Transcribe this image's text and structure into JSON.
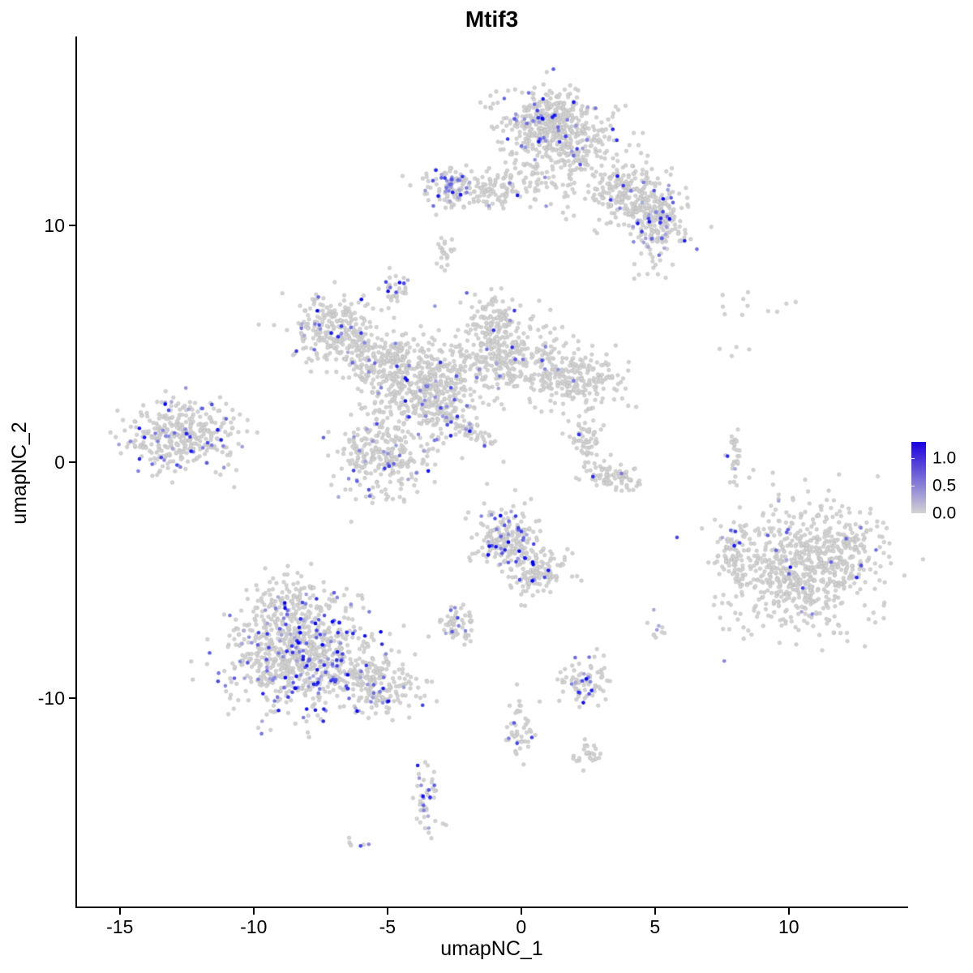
{
  "chart_data": {
    "type": "scatter",
    "title": "Mtif3",
    "xlabel": "umapNC_1",
    "ylabel": "umapNC_2",
    "xlim": [
      -16.6,
      14.4
    ],
    "ylim": [
      -18.8,
      18.0
    ],
    "x_tick_values": [
      -15,
      -10,
      -5,
      0,
      5,
      10
    ],
    "x_tick_labels": [
      "-15",
      "-10",
      "-5",
      "0",
      "5",
      "10"
    ],
    "y_tick_values": [
      10,
      0,
      -10
    ],
    "y_tick_labels": [
      "10",
      "0",
      "-10"
    ],
    "grid": false,
    "point": {
      "radius": 2.3,
      "base_color": "#d3d3d3",
      "high_color": "#0000ff"
    },
    "legend": {
      "position": "right",
      "tick_labels": [
        "1.0",
        "0.5",
        "0.0"
      ],
      "tick_values": [
        1.0,
        0.5,
        0.0
      ],
      "domain": [
        0.0,
        1.3
      ],
      "low_color": "#d3d3d3",
      "high_color": "#1a00dc"
    },
    "seed": 1337,
    "clusters": [
      {
        "name": "top-main",
        "cx": 1.4,
        "cy": 13.8,
        "sx": 1.05,
        "sy": 0.95,
        "n": 480,
        "f": 0.05
      },
      {
        "name": "top-core",
        "cx": 0.9,
        "cy": 14.6,
        "sx": 0.5,
        "sy": 0.45,
        "n": 120,
        "f": 0.08
      },
      {
        "name": "top-right-band",
        "cx": 3.9,
        "cy": 11.4,
        "sx": 0.95,
        "sy": 0.8,
        "rot": -35,
        "n": 260,
        "f": 0.06
      },
      {
        "name": "top-right-clump",
        "cx": 5.15,
        "cy": 10.1,
        "sx": 0.55,
        "sy": 0.6,
        "n": 170,
        "f": 0.12
      },
      {
        "name": "top-left-arm",
        "cx": -1.4,
        "cy": 11.6,
        "sx": 1.25,
        "sy": 0.45,
        "n": 170,
        "f": 0.07
      },
      {
        "name": "top-left-clump",
        "cx": -2.65,
        "cy": 11.7,
        "sx": 0.3,
        "sy": 0.45,
        "n": 60,
        "f": 0.3
      },
      {
        "name": "top-tail",
        "cx": 4.9,
        "cy": 8.8,
        "sx": 0.35,
        "sy": 0.45,
        "n": 16,
        "f": 0.12
      },
      {
        "name": "tiny-9",
        "cx": -2.85,
        "cy": 8.95,
        "sx": 0.2,
        "sy": 0.4,
        "n": 22,
        "f": 0.04
      },
      {
        "name": "small-7",
        "cx": -4.6,
        "cy": 7.3,
        "sx": 0.22,
        "sy": 0.5,
        "n": 30,
        "f": 0.25
      },
      {
        "name": "mid-nw-lobe",
        "cx": -6.9,
        "cy": 5.5,
        "sx": 0.85,
        "sy": 0.8,
        "n": 280,
        "f": 0.09
      },
      {
        "name": "mid-bridge",
        "cx": -5.1,
        "cy": 4.2,
        "sx": 0.7,
        "sy": 0.55,
        "rot": 30,
        "n": 150,
        "f": 0.06
      },
      {
        "name": "mid-center",
        "cx": -3.5,
        "cy": 3.1,
        "sx": 1.05,
        "sy": 0.95,
        "n": 480,
        "f": 0.07
      },
      {
        "name": "mid-right",
        "cx": -0.4,
        "cy": 4.4,
        "sx": 1.2,
        "sy": 0.8,
        "n": 320,
        "f": 0.05
      },
      {
        "name": "mid-far-right",
        "cx": 2.0,
        "cy": 3.5,
        "sx": 0.8,
        "sy": 0.6,
        "n": 190,
        "f": 0.03
      },
      {
        "name": "mid-top-knob",
        "cx": -1.1,
        "cy": 6.0,
        "sx": 0.45,
        "sy": 0.55,
        "n": 90,
        "f": 0.05
      },
      {
        "name": "mid-lower-lobe",
        "cx": -5.2,
        "cy": 0.3,
        "sx": 0.85,
        "sy": 0.85,
        "n": 270,
        "f": 0.08
      },
      {
        "name": "mid-streak",
        "cx": -2.1,
        "cy": 1.5,
        "sx": 0.75,
        "sy": 0.18,
        "rot": -35,
        "n": 70,
        "f": 0.12
      },
      {
        "name": "far-left",
        "cx": -12.7,
        "cy": 1.1,
        "sx": 1.05,
        "sy": 0.7,
        "n": 360,
        "f": 0.13
      },
      {
        "name": "crescent-a",
        "cx": 2.45,
        "cy": 0.9,
        "sx": 0.28,
        "sy": 0.5,
        "n": 55,
        "f": 0.06
      },
      {
        "name": "crescent-b",
        "cx": 3.3,
        "cy": -0.6,
        "sx": 0.6,
        "sy": 0.3,
        "rot": -15,
        "n": 85,
        "f": 0.02
      },
      {
        "name": "strip-8",
        "cx": 8.0,
        "cy": 0.3,
        "sx": 0.13,
        "sy": 0.55,
        "n": 28,
        "f": 0.1
      },
      {
        "name": "right-main",
        "cx": 10.4,
        "cy": -4.4,
        "sx": 1.35,
        "sy": 1.25,
        "n": 680,
        "f": 0.03
      },
      {
        "name": "right-edge",
        "cx": 12.3,
        "cy": -3.6,
        "sx": 0.5,
        "sy": 0.8,
        "n": 90,
        "f": 0.05
      },
      {
        "name": "right-knob",
        "cx": 7.9,
        "cy": -3.6,
        "sx": 0.3,
        "sy": 0.55,
        "n": 55,
        "f": 0.06
      },
      {
        "name": "center-low-top",
        "cx": -0.6,
        "cy": -3.3,
        "sx": 0.6,
        "sy": 0.65,
        "n": 200,
        "f": 0.14
      },
      {
        "name": "center-low-bot",
        "cx": 0.55,
        "cy": -4.7,
        "sx": 0.55,
        "sy": 0.5,
        "n": 130,
        "f": 0.06
      },
      {
        "name": "small-minus7",
        "cx": -2.45,
        "cy": -6.9,
        "sx": 0.4,
        "sy": 0.4,
        "n": 60,
        "f": 0.12
      },
      {
        "name": "botleft-main",
        "cx": -8.3,
        "cy": -8.2,
        "sx": 1.3,
        "sy": 1.15,
        "n": 780,
        "f": 0.2
      },
      {
        "name": "botleft-top",
        "cx": -8.6,
        "cy": -5.9,
        "sx": 0.8,
        "sy": 0.55,
        "n": 110,
        "f": 0.12
      },
      {
        "name": "botleft-tail",
        "cx": -5.4,
        "cy": -9.4,
        "sx": 0.95,
        "sy": 0.6,
        "rot": -20,
        "n": 210,
        "f": 0.1
      },
      {
        "name": "small-2-m9",
        "cx": 2.4,
        "cy": -9.3,
        "sx": 0.45,
        "sy": 0.55,
        "n": 80,
        "f": 0.14
      },
      {
        "name": "pair-5-m7",
        "cx": 4.95,
        "cy": -7.1,
        "sx": 0.18,
        "sy": 0.28,
        "n": 10,
        "f": 0.25
      },
      {
        "name": "trail-0-m11",
        "cx": -0.05,
        "cy": -11.3,
        "sx": 0.25,
        "sy": 0.75,
        "n": 48,
        "f": 0.08
      },
      {
        "name": "small-2-m12",
        "cx": 2.5,
        "cy": -12.4,
        "sx": 0.35,
        "sy": 0.25,
        "n": 26,
        "f": 0.0
      },
      {
        "name": "bottom-strip",
        "cx": -3.55,
        "cy": -14.4,
        "sx": 0.28,
        "sy": 0.75,
        "n": 48,
        "f": 0.22
      },
      {
        "name": "tiny-m16",
        "cx": -6.1,
        "cy": -16.1,
        "sx": 0.18,
        "sy": 0.15,
        "n": 7,
        "f": 0.3
      },
      {
        "name": "sparse-topright",
        "cx": 8.6,
        "cy": 6.7,
        "sx": 1.1,
        "sy": 0.3,
        "n": 11,
        "f": 0.0
      },
      {
        "name": "sparse-topright2",
        "cx": 7.9,
        "cy": 4.8,
        "sx": 0.5,
        "sy": 0.3,
        "n": 4,
        "f": 0.0
      }
    ]
  }
}
